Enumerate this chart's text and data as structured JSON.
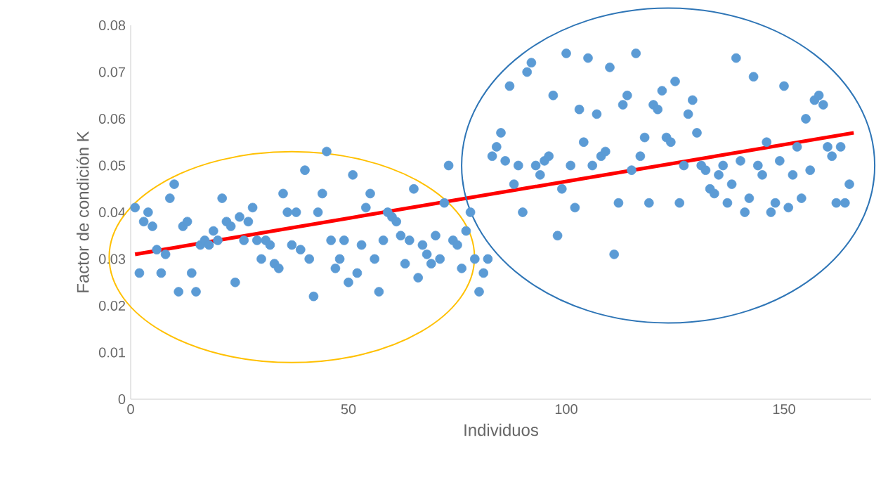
{
  "chart_data": {
    "type": "scatter",
    "xlabel": "Individuos",
    "ylabel": "Factor de condición K",
    "xlim": [
      0,
      170
    ],
    "xticks": [
      0,
      50,
      100,
      150
    ],
    "ylim": [
      0,
      0.08
    ],
    "yticks": [
      {
        "value": 0,
        "label": "0"
      },
      {
        "value": 0.01,
        "label": "0.01"
      },
      {
        "value": 0.02,
        "label": "0.02"
      },
      {
        "value": 0.03,
        "label": "0.03"
      },
      {
        "value": 0.04,
        "label": "0.04"
      },
      {
        "value": 0.05,
        "label": "0.05"
      },
      {
        "value": 0.06,
        "label": "0.06"
      },
      {
        "value": 0.07,
        "label": "0.07"
      },
      {
        "value": 0.08,
        "label": "0.08"
      }
    ],
    "grid": false,
    "series": [
      {
        "color": "#5b9bd5",
        "marker": "circle",
        "x": [
          1,
          2,
          3,
          4,
          5,
          6,
          7,
          8,
          9,
          10,
          11,
          12,
          13,
          14,
          15,
          16,
          17,
          18,
          19,
          20,
          21,
          22,
          23,
          24,
          25,
          26,
          27,
          28,
          29,
          30,
          31,
          32,
          33,
          34,
          35,
          36,
          37,
          38,
          39,
          40,
          41,
          42,
          43,
          44,
          45,
          46,
          47,
          48,
          49,
          50,
          51,
          52,
          53,
          54,
          55,
          56,
          57,
          58,
          59,
          60,
          61,
          62,
          63,
          64,
          65,
          66,
          67,
          68,
          69,
          70,
          71,
          72,
          73,
          74,
          75,
          76,
          77,
          78,
          79,
          80,
          81,
          82,
          83,
          84,
          85,
          86,
          87,
          88,
          89,
          90,
          91,
          92,
          93,
          94,
          95,
          96,
          97,
          98,
          99,
          100,
          101,
          102,
          103,
          104,
          105,
          106,
          107,
          108,
          109,
          110,
          111,
          112,
          113,
          114,
          115,
          116,
          117,
          118,
          119,
          120,
          121,
          122,
          123,
          124,
          125,
          126,
          127,
          128,
          129,
          130,
          131,
          132,
          133,
          134,
          135,
          136,
          137,
          138,
          139,
          140,
          141,
          142,
          143,
          144,
          145,
          146,
          147,
          148,
          149,
          150,
          151,
          152,
          153,
          154,
          155,
          156,
          157,
          158,
          159,
          160,
          161,
          162,
          163,
          164,
          165
        ],
        "values": [
          0.041,
          0.027,
          0.038,
          0.04,
          0.037,
          0.032,
          0.027,
          0.031,
          0.043,
          0.046,
          0.023,
          0.037,
          0.038,
          0.027,
          0.023,
          0.033,
          0.034,
          0.033,
          0.036,
          0.034,
          0.043,
          0.038,
          0.037,
          0.025,
          0.039,
          0.034,
          0.038,
          0.041,
          0.034,
          0.03,
          0.034,
          0.033,
          0.029,
          0.028,
          0.044,
          0.04,
          0.033,
          0.04,
          0.032,
          0.049,
          0.03,
          0.022,
          0.04,
          0.044,
          0.053,
          0.034,
          0.028,
          0.03,
          0.034,
          0.025,
          0.048,
          0.027,
          0.033,
          0.041,
          0.044,
          0.03,
          0.023,
          0.034,
          0.04,
          0.039,
          0.038,
          0.035,
          0.029,
          0.034,
          0.045,
          0.026,
          0.033,
          0.031,
          0.029,
          0.035,
          0.03,
          0.042,
          0.05,
          0.034,
          0.033,
          0.028,
          0.036,
          0.04,
          0.03,
          0.023,
          0.027,
          0.03,
          0.052,
          0.054,
          0.057,
          0.051,
          0.067,
          0.046,
          0.05,
          0.04,
          0.07,
          0.072,
          0.05,
          0.048,
          0.051,
          0.052,
          0.065,
          0.035,
          0.045,
          0.074,
          0.05,
          0.041,
          0.062,
          0.055,
          0.073,
          0.05,
          0.061,
          0.052,
          0.053,
          0.071,
          0.031,
          0.042,
          0.063,
          0.065,
          0.049,
          0.074,
          0.052,
          0.056,
          0.042,
          0.063,
          0.062,
          0.066,
          0.056,
          0.055,
          0.068,
          0.042,
          0.05,
          0.061,
          0.064,
          0.057,
          0.05,
          0.049,
          0.045,
          0.044,
          0.048,
          0.05,
          0.042,
          0.046,
          0.073,
          0.051,
          0.04,
          0.043,
          0.069,
          0.05,
          0.048,
          0.055,
          0.04,
          0.042,
          0.051,
          0.067,
          0.041,
          0.048,
          0.054,
          0.043,
          0.06,
          0.049,
          0.064,
          0.065,
          0.063,
          0.054,
          0.052,
          0.042,
          0.054,
          0.042,
          0.046
        ]
      },
      {
        "type": "line",
        "color": "#ff0000",
        "x": [
          1,
          166
        ],
        "values": [
          0.031,
          0.057
        ]
      }
    ]
  }
}
